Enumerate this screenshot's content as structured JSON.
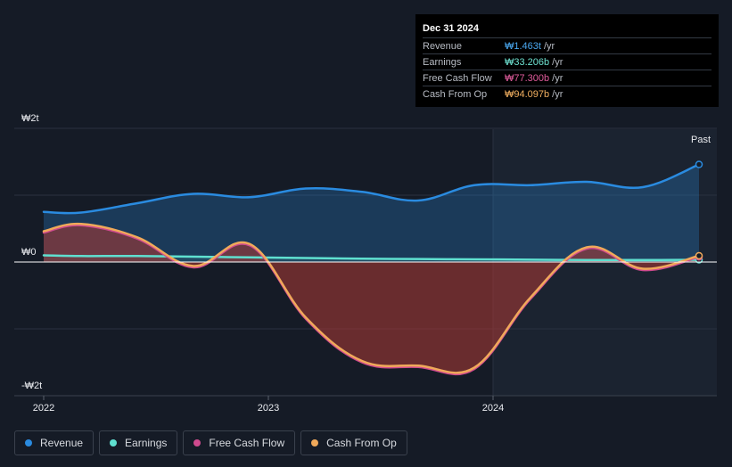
{
  "tooltip": {
    "date": "Dec 31 2024",
    "rows": [
      {
        "label": "Revenue",
        "value": "₩1.463t",
        "unit": "/yr",
        "color": "#4aa8f0"
      },
      {
        "label": "Earnings",
        "value": "₩33.206b",
        "unit": "/yr",
        "color": "#6fe3d2"
      },
      {
        "label": "Free Cash Flow",
        "value": "₩77.300b",
        "unit": "/yr",
        "color": "#e05c9c"
      },
      {
        "label": "Cash From Op",
        "value": "₩94.097b",
        "unit": "/yr",
        "color": "#f3b061"
      }
    ]
  },
  "legend": [
    {
      "label": "Revenue",
      "color": "#2a8be0"
    },
    {
      "label": "Earnings",
      "color": "#5fe0d0"
    },
    {
      "label": "Free Cash Flow",
      "color": "#cf4a8e"
    },
    {
      "label": "Cash From Op",
      "color": "#f0a95a"
    }
  ],
  "chart_data": {
    "type": "line",
    "title": "",
    "xlabel": "",
    "ylabel": "",
    "x_ticks": [
      "2022",
      "2023",
      "2024"
    ],
    "y_ticks": [
      "₩2t",
      "₩0",
      "-₩2t"
    ],
    "ylim": [
      -2.0,
      2.0
    ],
    "past_label": "Past",
    "grid": true,
    "legend_position": "bottom-left",
    "series": [
      {
        "name": "Revenue",
        "color": "#2a8be0",
        "x": [
          "2022-01",
          "2022-03",
          "2022-06",
          "2022-09",
          "2022-12",
          "2023-03",
          "2023-06",
          "2023-09",
          "2023-12",
          "2024-03",
          "2024-06",
          "2024-09",
          "2024-12"
        ],
        "values": [
          0.75,
          0.74,
          0.88,
          1.02,
          0.97,
          1.1,
          1.05,
          0.92,
          1.15,
          1.15,
          1.2,
          1.12,
          1.46
        ]
      },
      {
        "name": "Earnings",
        "color": "#5fe0d0",
        "x": [
          "2022-01",
          "2022-03",
          "2022-06",
          "2022-09",
          "2022-12",
          "2023-03",
          "2023-06",
          "2023-09",
          "2023-12",
          "2024-03",
          "2024-06",
          "2024-09",
          "2024-12"
        ],
        "values": [
          0.1,
          0.09,
          0.09,
          0.08,
          0.07,
          0.06,
          0.05,
          0.045,
          0.04,
          0.035,
          0.03,
          0.03,
          0.033
        ]
      },
      {
        "name": "Free Cash Flow",
        "color": "#cf4a8e",
        "x": [
          "2022-01",
          "2022-03",
          "2022-06",
          "2022-09",
          "2022-12",
          "2023-03",
          "2023-06",
          "2023-09",
          "2023-12",
          "2024-03",
          "2024-06",
          "2024-09",
          "2024-12"
        ],
        "values": [
          0.44,
          0.55,
          0.35,
          -0.08,
          0.25,
          -0.85,
          -1.5,
          -1.57,
          -1.6,
          -0.55,
          0.2,
          -0.12,
          0.077
        ]
      },
      {
        "name": "Cash From Op",
        "color": "#f0a95a",
        "x": [
          "2022-01",
          "2022-03",
          "2022-06",
          "2022-09",
          "2022-12",
          "2023-03",
          "2023-06",
          "2023-09",
          "2023-12",
          "2024-03",
          "2024-06",
          "2024-09",
          "2024-12"
        ],
        "values": [
          0.46,
          0.57,
          0.37,
          -0.06,
          0.27,
          -0.83,
          -1.48,
          -1.55,
          -1.58,
          -0.53,
          0.22,
          -0.1,
          0.094
        ]
      }
    ]
  }
}
